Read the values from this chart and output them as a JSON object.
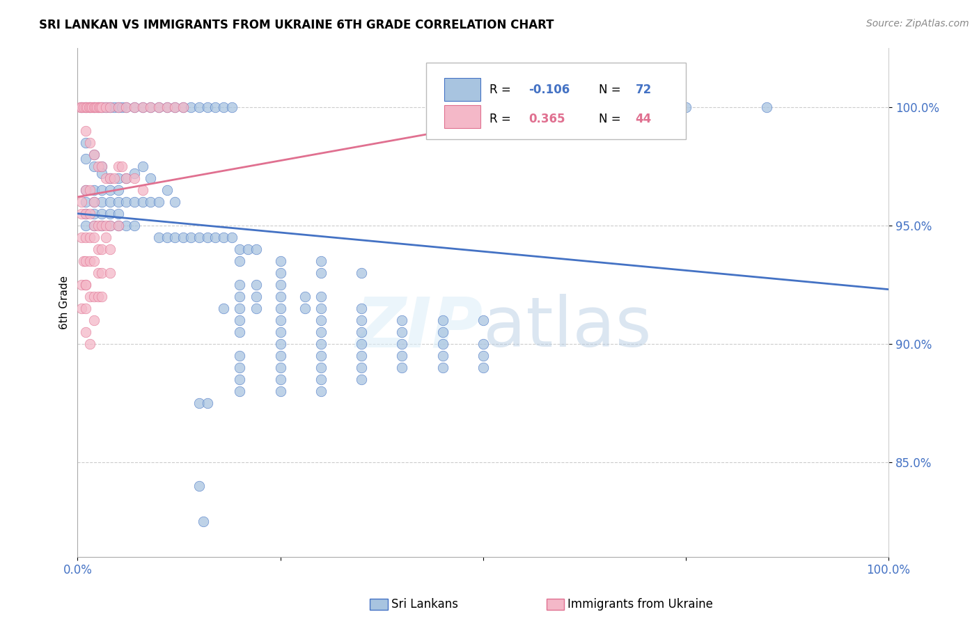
{
  "title": "SRI LANKAN VS IMMIGRANTS FROM UKRAINE 6TH GRADE CORRELATION CHART",
  "source": "Source: ZipAtlas.com",
  "ylabel": "6th Grade",
  "watermark": "ZIPatlas",
  "label_blue": "Sri Lankans",
  "label_pink": "Immigrants from Ukraine",
  "blue_color": "#a8c4e0",
  "pink_color": "#f4b8c8",
  "blue_line_color": "#4472c4",
  "pink_line_color": "#e07090",
  "blue_scatter": [
    [
      0.5,
      100.0
    ],
    [
      1.0,
      100.0
    ],
    [
      1.5,
      100.0
    ],
    [
      2.0,
      100.0
    ],
    [
      2.5,
      100.0
    ],
    [
      3.0,
      100.0
    ],
    [
      3.5,
      100.0
    ],
    [
      4.0,
      100.0
    ],
    [
      4.5,
      100.0
    ],
    [
      5.0,
      100.0
    ],
    [
      5.5,
      100.0
    ],
    [
      6.0,
      100.0
    ],
    [
      7.0,
      100.0
    ],
    [
      8.0,
      100.0
    ],
    [
      9.0,
      100.0
    ],
    [
      10.0,
      100.0
    ],
    [
      11.0,
      100.0
    ],
    [
      12.0,
      100.0
    ],
    [
      13.0,
      100.0
    ],
    [
      14.0,
      100.0
    ],
    [
      15.0,
      100.0
    ],
    [
      16.0,
      100.0
    ],
    [
      17.0,
      100.0
    ],
    [
      18.0,
      100.0
    ],
    [
      19.0,
      100.0
    ],
    [
      60.0,
      100.0
    ],
    [
      75.0,
      100.0
    ],
    [
      85.0,
      100.0
    ],
    [
      1.0,
      98.5
    ],
    [
      2.0,
      98.0
    ],
    [
      3.0,
      97.5
    ],
    [
      1.0,
      97.8
    ],
    [
      2.0,
      97.5
    ],
    [
      3.0,
      97.2
    ],
    [
      4.0,
      97.0
    ],
    [
      5.0,
      97.0
    ],
    [
      6.0,
      97.0
    ],
    [
      7.0,
      97.2
    ],
    [
      8.0,
      97.5
    ],
    [
      9.0,
      97.0
    ],
    [
      1.0,
      96.5
    ],
    [
      2.0,
      96.5
    ],
    [
      3.0,
      96.5
    ],
    [
      4.0,
      96.5
    ],
    [
      5.0,
      96.5
    ],
    [
      1.0,
      96.0
    ],
    [
      2.0,
      96.0
    ],
    [
      3.0,
      96.0
    ],
    [
      4.0,
      96.0
    ],
    [
      5.0,
      96.0
    ],
    [
      6.0,
      96.0
    ],
    [
      7.0,
      96.0
    ],
    [
      8.0,
      96.0
    ],
    [
      9.0,
      96.0
    ],
    [
      10.0,
      96.0
    ],
    [
      11.0,
      96.5
    ],
    [
      12.0,
      96.0
    ],
    [
      1.0,
      95.5
    ],
    [
      2.0,
      95.5
    ],
    [
      3.0,
      95.5
    ],
    [
      4.0,
      95.5
    ],
    [
      5.0,
      95.5
    ],
    [
      1.0,
      95.0
    ],
    [
      2.0,
      95.0
    ],
    [
      3.0,
      95.0
    ],
    [
      4.0,
      95.0
    ],
    [
      5.0,
      95.0
    ],
    [
      6.0,
      95.0
    ],
    [
      7.0,
      95.0
    ],
    [
      10.0,
      94.5
    ],
    [
      11.0,
      94.5
    ],
    [
      12.0,
      94.5
    ],
    [
      13.0,
      94.5
    ],
    [
      14.0,
      94.5
    ],
    [
      15.0,
      94.5
    ],
    [
      16.0,
      94.5
    ],
    [
      17.0,
      94.5
    ],
    [
      18.0,
      94.5
    ],
    [
      19.0,
      94.5
    ],
    [
      20.0,
      94.0
    ],
    [
      21.0,
      94.0
    ],
    [
      22.0,
      94.0
    ],
    [
      20.0,
      93.5
    ],
    [
      25.0,
      93.5
    ],
    [
      30.0,
      93.5
    ],
    [
      25.0,
      93.0
    ],
    [
      30.0,
      93.0
    ],
    [
      35.0,
      93.0
    ],
    [
      20.0,
      92.5
    ],
    [
      22.0,
      92.5
    ],
    [
      25.0,
      92.5
    ],
    [
      20.0,
      92.0
    ],
    [
      22.0,
      92.0
    ],
    [
      25.0,
      92.0
    ],
    [
      28.0,
      92.0
    ],
    [
      30.0,
      92.0
    ],
    [
      18.0,
      91.5
    ],
    [
      20.0,
      91.5
    ],
    [
      22.0,
      91.5
    ],
    [
      25.0,
      91.5
    ],
    [
      28.0,
      91.5
    ],
    [
      30.0,
      91.5
    ],
    [
      35.0,
      91.5
    ],
    [
      20.0,
      91.0
    ],
    [
      25.0,
      91.0
    ],
    [
      30.0,
      91.0
    ],
    [
      35.0,
      91.0
    ],
    [
      40.0,
      91.0
    ],
    [
      45.0,
      91.0
    ],
    [
      50.0,
      91.0
    ],
    [
      20.0,
      90.5
    ],
    [
      25.0,
      90.5
    ],
    [
      30.0,
      90.5
    ],
    [
      35.0,
      90.5
    ],
    [
      40.0,
      90.5
    ],
    [
      45.0,
      90.5
    ],
    [
      25.0,
      90.0
    ],
    [
      30.0,
      90.0
    ],
    [
      35.0,
      90.0
    ],
    [
      40.0,
      90.0
    ],
    [
      45.0,
      90.0
    ],
    [
      50.0,
      90.0
    ],
    [
      20.0,
      89.5
    ],
    [
      25.0,
      89.5
    ],
    [
      30.0,
      89.5
    ],
    [
      35.0,
      89.5
    ],
    [
      40.0,
      89.5
    ],
    [
      45.0,
      89.5
    ],
    [
      50.0,
      89.5
    ],
    [
      20.0,
      89.0
    ],
    [
      25.0,
      89.0
    ],
    [
      30.0,
      89.0
    ],
    [
      35.0,
      89.0
    ],
    [
      40.0,
      89.0
    ],
    [
      45.0,
      89.0
    ],
    [
      50.0,
      89.0
    ],
    [
      20.0,
      88.5
    ],
    [
      25.0,
      88.5
    ],
    [
      30.0,
      88.5
    ],
    [
      35.0,
      88.5
    ],
    [
      20.0,
      88.0
    ],
    [
      25.0,
      88.0
    ],
    [
      30.0,
      88.0
    ],
    [
      15.0,
      87.5
    ],
    [
      16.0,
      87.5
    ],
    [
      15.0,
      84.0
    ],
    [
      15.5,
      82.5
    ]
  ],
  "pink_scatter": [
    [
      0.3,
      100.0
    ],
    [
      0.5,
      100.0
    ],
    [
      0.7,
      100.0
    ],
    [
      1.0,
      100.0
    ],
    [
      1.2,
      100.0
    ],
    [
      1.4,
      100.0
    ],
    [
      1.6,
      100.0
    ],
    [
      1.8,
      100.0
    ],
    [
      2.0,
      100.0
    ],
    [
      2.2,
      100.0
    ],
    [
      2.4,
      100.0
    ],
    [
      2.6,
      100.0
    ],
    [
      2.8,
      100.0
    ],
    [
      3.0,
      100.0
    ],
    [
      3.5,
      100.0
    ],
    [
      4.0,
      100.0
    ],
    [
      5.0,
      100.0
    ],
    [
      6.0,
      100.0
    ],
    [
      7.0,
      100.0
    ],
    [
      8.0,
      100.0
    ],
    [
      9.0,
      100.0
    ],
    [
      10.0,
      100.0
    ],
    [
      11.0,
      100.0
    ],
    [
      12.0,
      100.0
    ],
    [
      13.0,
      100.0
    ],
    [
      1.0,
      99.0
    ],
    [
      1.5,
      98.5
    ],
    [
      2.0,
      98.0
    ],
    [
      2.5,
      97.5
    ],
    [
      3.0,
      97.5
    ],
    [
      3.5,
      97.0
    ],
    [
      4.0,
      97.0
    ],
    [
      4.5,
      97.0
    ],
    [
      5.0,
      97.5
    ],
    [
      5.5,
      97.5
    ],
    [
      6.0,
      97.0
    ],
    [
      7.0,
      97.0
    ],
    [
      8.0,
      96.5
    ],
    [
      1.0,
      96.5
    ],
    [
      1.5,
      96.5
    ],
    [
      2.0,
      96.0
    ],
    [
      0.5,
      96.0
    ],
    [
      0.5,
      95.5
    ],
    [
      1.0,
      95.5
    ],
    [
      1.5,
      95.5
    ],
    [
      2.0,
      95.0
    ],
    [
      2.5,
      95.0
    ],
    [
      3.0,
      95.0
    ],
    [
      3.5,
      95.0
    ],
    [
      4.0,
      95.0
    ],
    [
      5.0,
      95.0
    ],
    [
      0.5,
      94.5
    ],
    [
      1.0,
      94.5
    ],
    [
      1.5,
      94.5
    ],
    [
      2.0,
      94.5
    ],
    [
      2.5,
      94.0
    ],
    [
      3.0,
      94.0
    ],
    [
      3.5,
      94.5
    ],
    [
      4.0,
      94.0
    ],
    [
      0.7,
      93.5
    ],
    [
      1.0,
      93.5
    ],
    [
      1.5,
      93.5
    ],
    [
      2.0,
      93.5
    ],
    [
      2.5,
      93.0
    ],
    [
      3.0,
      93.0
    ],
    [
      4.0,
      93.0
    ],
    [
      0.5,
      92.5
    ],
    [
      1.0,
      92.5
    ],
    [
      1.5,
      92.0
    ],
    [
      2.0,
      92.0
    ],
    [
      2.5,
      92.0
    ],
    [
      3.0,
      92.0
    ],
    [
      0.5,
      91.5
    ],
    [
      1.0,
      91.5
    ],
    [
      2.0,
      91.0
    ],
    [
      1.0,
      90.5
    ],
    [
      1.5,
      90.0
    ],
    [
      1.0,
      92.5
    ]
  ],
  "blue_line": {
    "x0": 0.0,
    "x1": 100.0,
    "y0": 95.5,
    "y1": 92.3
  },
  "pink_line": {
    "x0": 0.0,
    "x1": 70.0,
    "y0": 96.2,
    "y1": 100.5
  },
  "xlim": [
    0.0,
    100.0
  ],
  "ylim": [
    81.0,
    102.5
  ],
  "figsize": [
    14.06,
    8.92
  ],
  "dpi": 100
}
